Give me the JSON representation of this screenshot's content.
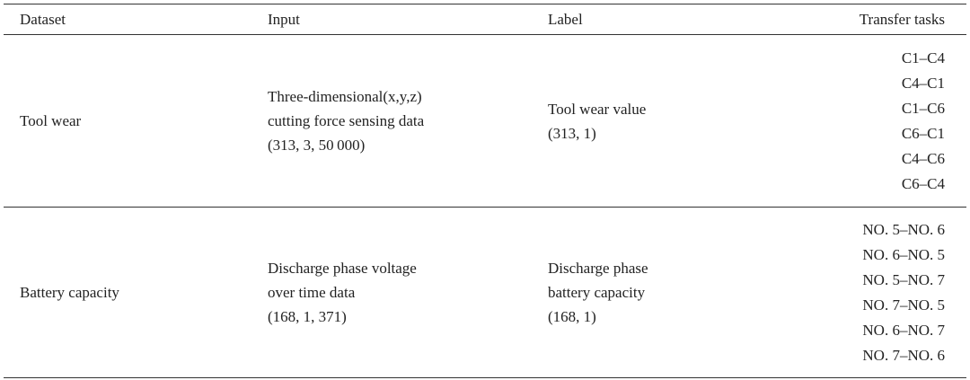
{
  "table": {
    "header": [
      "Dataset",
      "Input",
      "Label",
      "Transfer tasks"
    ],
    "rows": [
      {
        "dataset": "Tool wear",
        "input": [
          "Three-dimensional(x,y,z)",
          "cutting force sensing data",
          "(313, 3, 50 000)"
        ],
        "label": [
          "Tool wear value",
          "(313, 1)"
        ],
        "tasks": [
          "C1–C4",
          "C4–C1",
          "C1–C6",
          "C6–C1",
          "C4–C6",
          "C6–C4"
        ]
      },
      {
        "dataset": "Battery capacity",
        "input": [
          "Discharge phase voltage",
          "over time data",
          "(168, 1, 371)"
        ],
        "label": [
          "Discharge phase",
          "battery capacity",
          "(168, 1)"
        ],
        "tasks": [
          "NO. 5–NO. 6",
          "NO. 6–NO. 5",
          "NO. 5–NO. 7",
          "NO. 7–NO. 5",
          "NO. 6–NO. 7",
          "NO. 7–NO. 6"
        ]
      }
    ]
  }
}
